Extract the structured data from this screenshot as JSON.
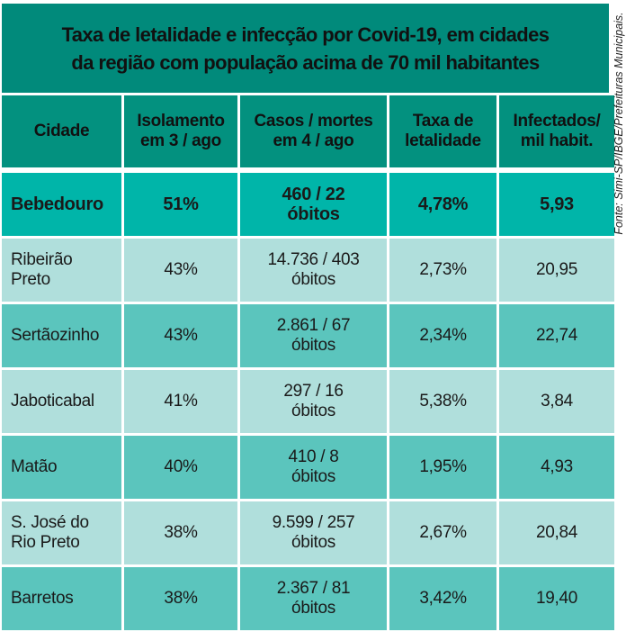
{
  "title": {
    "line1": "Taxa de letalidade e infecção por Covid-19, em cidades",
    "line2": "da região com população acima de 70 mil habitantes"
  },
  "source": "Fonte: Simi-SP/IBGE/Prefeituras Municipais.",
  "colors": {
    "title_bg": "#018a7b",
    "header_bg": "#03917f",
    "highlight_row": "#00b5a9",
    "light_row": "#b0dfdc",
    "mid_row": "#5bc5bd"
  },
  "chart_data": {
    "type": "table",
    "title": "Taxa de letalidade e infecção por Covid-19, em cidades da região com população acima de 70 mil habitantes",
    "headers": [
      {
        "l1": "Cidade",
        "l2": ""
      },
      {
        "l1": "Isolamento",
        "l2": "em 3 / ago"
      },
      {
        "l1": "Casos / mortes",
        "l2": "em 4 / ago"
      },
      {
        "l1": "Taxa de",
        "l2": "letalidade"
      },
      {
        "l1": "Infectados/",
        "l2": "mil habit."
      }
    ],
    "rows": [
      {
        "city1": "Bebedouro",
        "city2": "",
        "isolation": "51%",
        "cases1": "460 / 22",
        "cases2": "óbitos",
        "lethality": "4,78%",
        "infected": "5,93"
      },
      {
        "city1": "Ribeirão",
        "city2": "Preto",
        "isolation": "43%",
        "cases1": "14.736 / 403",
        "cases2": "óbitos",
        "lethality": "2,73%",
        "infected": "20,95"
      },
      {
        "city1": "Sertãozinho",
        "city2": "",
        "isolation": "43%",
        "cases1": "2.861 / 67",
        "cases2": "óbitos",
        "lethality": "2,34%",
        "infected": "22,74"
      },
      {
        "city1": "Jaboticabal",
        "city2": "",
        "isolation": "41%",
        "cases1": "297 / 16",
        "cases2": "óbitos",
        "lethality": "5,38%",
        "infected": "3,84"
      },
      {
        "city1": "Matão",
        "city2": "",
        "isolation": "40%",
        "cases1": "410 / 8",
        "cases2": "óbitos",
        "lethality": "1,95%",
        "infected": "4,93"
      },
      {
        "city1": "S. José do",
        "city2": "Rio Preto",
        "isolation": "38%",
        "cases1": "9.599 / 257",
        "cases2": "óbitos",
        "lethality": "2,67%",
        "infected": "20,84"
      },
      {
        "city1": "Barretos",
        "city2": "",
        "isolation": "38%",
        "cases1": "2.367 / 81",
        "cases2": "óbitos",
        "lethality": "3,42%",
        "infected": "19,40"
      }
    ]
  }
}
